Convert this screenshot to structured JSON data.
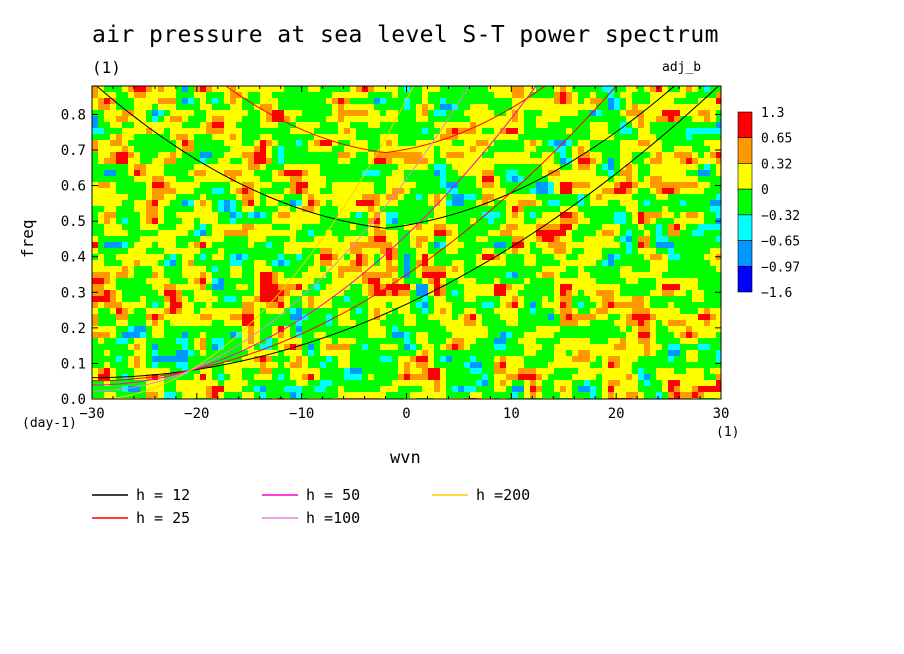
{
  "chart_data": {
    "type": "heatmap",
    "title": "air pressure at sea level S-T power spectrum",
    "title_unit": "(1)",
    "experiment_label": "adj_b",
    "xlabel": "wvn",
    "ylabel": "freq",
    "x_unit": "(1)",
    "y_unit": "(day-1)",
    "xlim": [
      -30,
      30
    ],
    "ylim": [
      0,
      0.88
    ],
    "x_ticks": [
      -30,
      -20,
      -10,
      0,
      10,
      20,
      30
    ],
    "x_tick_labels": [
      "−30",
      "−20",
      "−10",
      "0",
      "10",
      "20",
      "30"
    ],
    "y_ticks": [
      0,
      0.1,
      0.2,
      0.3,
      0.4,
      0.5,
      0.6,
      0.7,
      0.8
    ],
    "y_tick_labels": [
      "0.0",
      "0.1",
      "0.2",
      "0.3",
      "0.4",
      "0.5",
      "0.6",
      "0.7",
      "0.8"
    ],
    "colorbar": {
      "labels": [
        "1.3",
        "0.65",
        "0.32",
        "0",
        "−0.32",
        "−0.65",
        "−0.97",
        "−1.6"
      ],
      "colors": [
        "#ff0000",
        "#ff9900",
        "#ffff00",
        "#00ff00",
        "#00ffff",
        "#0099ff",
        "#0000ff"
      ]
    },
    "dominant_levels_note": "field dominated by green (−0.32 to 0) and yellow (0 to 0.32) patches with scattered orange, cyan and few red spots",
    "dispersion_curves": [
      {
        "name": "h = 12",
        "color": "#000000"
      },
      {
        "name": "h = 25",
        "color": "#ff0000"
      },
      {
        "name": "h = 50",
        "color": "#ff00cc"
      },
      {
        "name": "h =100",
        "color": "#dd88dd"
      },
      {
        "name": "h =200",
        "color": "#ffcc00"
      }
    ]
  }
}
